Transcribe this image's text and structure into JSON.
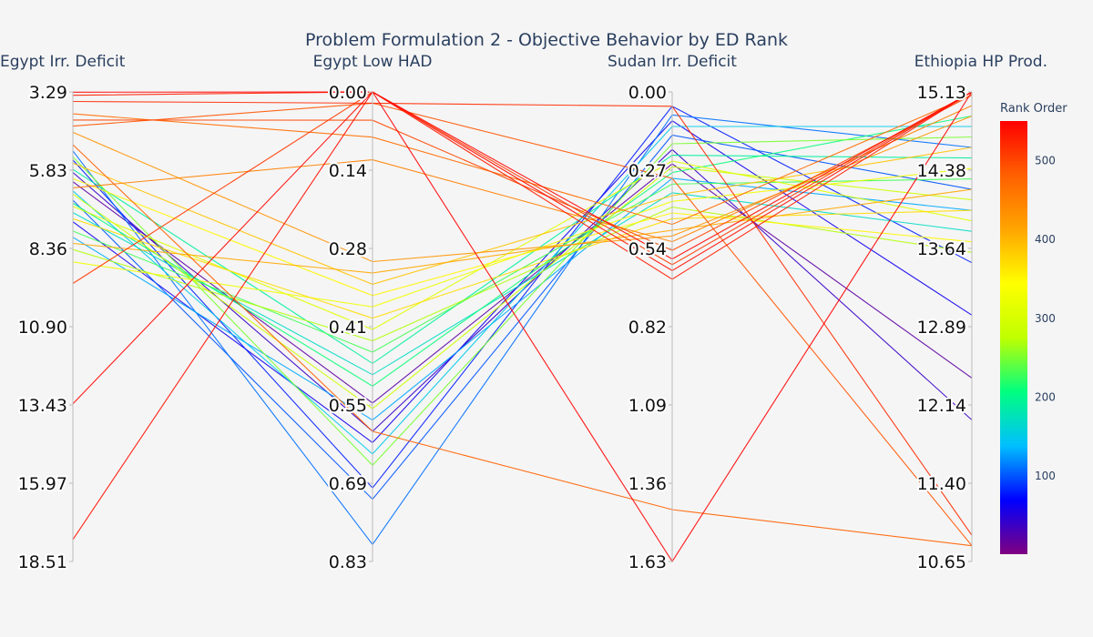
{
  "chart_data": {
    "type": "parallel_coordinates",
    "title": "Problem Formulation 2 - Objective Behavior by ED Rank",
    "dimensions": [
      {
        "label": "Egypt Irr. Deficit",
        "range": [
          3.29,
          18.51
        ],
        "reversed": true,
        "ticks": [
          "3.29",
          "5.83",
          "8.36",
          "10.90",
          "13.43",
          "15.97",
          "18.51"
        ]
      },
      {
        "label": "Egypt Low HAD",
        "range": [
          0.0,
          0.83
        ],
        "reversed": true,
        "ticks": [
          "0.00",
          "0.14",
          "0.28",
          "0.41",
          "0.55",
          "0.69",
          "0.83"
        ]
      },
      {
        "label": "Sudan Irr. Deficit",
        "range": [
          0.0,
          1.63
        ],
        "reversed": true,
        "ticks": [
          "0.00",
          "0.27",
          "0.54",
          "0.82",
          "1.09",
          "1.36",
          "1.63"
        ]
      },
      {
        "label": "Ethiopia HP Prod.",
        "range": [
          10.65,
          15.13
        ],
        "reversed": false,
        "ticks": [
          "15.13",
          "14.38",
          "13.64",
          "12.89",
          "12.14",
          "11.40",
          "10.65"
        ]
      }
    ],
    "colorbar": {
      "title": "Rank Order",
      "range": [
        1,
        550
      ],
      "ticks": [
        "100",
        "200",
        "300",
        "400",
        "500"
      ],
      "tick_values": [
        100,
        200,
        300,
        400,
        500
      ],
      "colorscale": [
        "#800080",
        "#0000ff",
        "#00bfff",
        "#00ff80",
        "#c0ff00",
        "#ffff00",
        "#ffa500",
        "#ff6000",
        "#ff0000"
      ]
    },
    "series": [
      {
        "rank": 20,
        "values": [
          6.2,
          0.55,
          0.25,
          12.4
        ]
      },
      {
        "rank": 40,
        "values": [
          5.9,
          0.6,
          0.2,
          12.0
        ]
      },
      {
        "rank": 60,
        "values": [
          7.5,
          0.62,
          0.1,
          13.0
        ]
      },
      {
        "rank": 80,
        "values": [
          5.5,
          0.7,
          0.05,
          13.5
        ]
      },
      {
        "rank": 100,
        "values": [
          6.8,
          0.72,
          0.15,
          14.2
        ]
      },
      {
        "rank": 110,
        "values": [
          5.2,
          0.8,
          0.08,
          14.6
        ]
      },
      {
        "rank": 130,
        "values": [
          8.0,
          0.58,
          0.3,
          14.0
        ]
      },
      {
        "rank": 150,
        "values": [
          6.5,
          0.64,
          0.12,
          14.8
        ]
      },
      {
        "rank": 170,
        "values": [
          7.2,
          0.5,
          0.35,
          13.8
        ]
      },
      {
        "rank": 190,
        "values": [
          5.8,
          0.48,
          0.22,
          14.5
        ]
      },
      {
        "rank": 210,
        "values": [
          6.9,
          0.52,
          0.28,
          14.9
        ]
      },
      {
        "rank": 230,
        "values": [
          7.8,
          0.46,
          0.32,
          14.3
        ]
      },
      {
        "rank": 250,
        "values": [
          5.4,
          0.66,
          0.18,
          14.7
        ]
      },
      {
        "rank": 270,
        "values": [
          8.4,
          0.44,
          0.4,
          13.6
        ]
      },
      {
        "rank": 290,
        "values": [
          6.6,
          0.56,
          0.26,
          14.1
        ]
      },
      {
        "rank": 310,
        "values": [
          7.0,
          0.42,
          0.24,
          13.9
        ]
      },
      {
        "rank": 330,
        "values": [
          8.8,
          0.38,
          0.38,
          14.4
        ]
      },
      {
        "rank": 350,
        "values": [
          6.1,
          0.36,
          0.42,
          13.7
        ]
      },
      {
        "rank": 370,
        "values": [
          7.4,
          0.4,
          0.44,
          14.0
        ]
      },
      {
        "rank": 390,
        "values": [
          5.6,
          0.34,
          0.36,
          14.6
        ]
      },
      {
        "rank": 410,
        "values": [
          8.2,
          0.32,
          0.48,
          14.2
        ]
      },
      {
        "rank": 430,
        "values": [
          4.6,
          0.3,
          0.5,
          14.9
        ]
      },
      {
        "rank": 450,
        "values": [
          6.4,
          0.12,
          0.52,
          15.0
        ]
      },
      {
        "rank": 470,
        "values": [
          4.0,
          0.08,
          0.46,
          15.1
        ]
      },
      {
        "rank": 480,
        "values": [
          5.0,
          0.6,
          1.45,
          10.8
        ]
      },
      {
        "rank": 490,
        "values": [
          4.4,
          0.02,
          0.3,
          10.8
        ]
      },
      {
        "rank": 500,
        "values": [
          4.2,
          0.05,
          0.55,
          15.1
        ]
      },
      {
        "rank": 510,
        "values": [
          9.5,
          0.0,
          0.6,
          15.13
        ]
      },
      {
        "rank": 520,
        "values": [
          3.6,
          0.02,
          0.05,
          10.9
        ]
      },
      {
        "rank": 530,
        "values": [
          3.4,
          0.0,
          0.65,
          15.13
        ]
      },
      {
        "rank": 540,
        "values": [
          17.8,
          0.0,
          0.62,
          15.13
        ]
      },
      {
        "rank": 545,
        "values": [
          13.4,
          0.0,
          0.58,
          15.13
        ]
      },
      {
        "rank": 550,
        "values": [
          3.3,
          0.0,
          1.63,
          15.13
        ]
      }
    ]
  }
}
